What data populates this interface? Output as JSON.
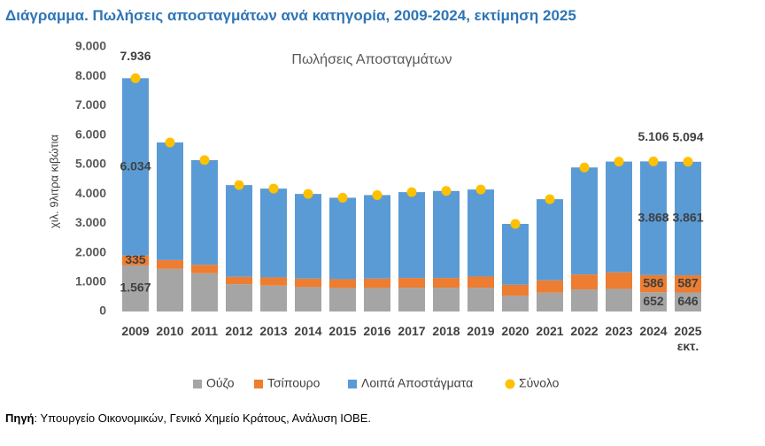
{
  "title": "Διάγραμμα. Πωλήσεις αποσταγμάτων ανά κατηγορία, 2009-2024, εκτίμηση 2025",
  "source": {
    "label": "Πηγή",
    "text": ": Υπουργείο Οικονομικών, Γενικό Χημείο Κράτους, Ανάλυση ΙΟΒΕ."
  },
  "chart_data": {
    "type": "bar",
    "stacked": true,
    "title": "Πωλήσεις Αποσταγμάτων",
    "y_label": "χιλ. 9λιτρα κιβώτια",
    "categories": [
      "2009",
      "2010",
      "2011",
      "2012",
      "2013",
      "2014",
      "2015",
      "2016",
      "2017",
      "2018",
      "2019",
      "2020",
      "2021",
      "2022",
      "2023",
      "2024",
      "2025 εκτ."
    ],
    "series": [
      {
        "name": "Ούζο",
        "color": "#a5a5a5",
        "values": [
          1567,
          1450,
          1300,
          930,
          880,
          830,
          800,
          800,
          810,
          810,
          810,
          540,
          640,
          750,
          770,
          652,
          646
        ],
        "value_labels": [
          "1.567",
          null,
          null,
          null,
          null,
          null,
          null,
          null,
          null,
          null,
          null,
          null,
          null,
          null,
          null,
          "652",
          "646"
        ]
      },
      {
        "name": "Τσίπουρο",
        "color": "#ed7d31",
        "values": [
          335,
          300,
          290,
          250,
          280,
          290,
          300,
          320,
          330,
          330,
          380,
          370,
          420,
          510,
          560,
          586,
          587
        ],
        "value_labels": [
          "335",
          null,
          null,
          null,
          null,
          null,
          null,
          null,
          null,
          null,
          null,
          null,
          null,
          null,
          null,
          "586",
          "587"
        ]
      },
      {
        "name": "Λοιπά Αποστάγματα",
        "color": "#5b9bd5",
        "values": [
          6034,
          4000,
          3560,
          3120,
          3020,
          2880,
          2770,
          2840,
          2920,
          2960,
          2960,
          2070,
          2760,
          3640,
          3770,
          3868,
          3861
        ],
        "value_labels": [
          "6.034",
          null,
          null,
          null,
          null,
          null,
          null,
          null,
          null,
          null,
          null,
          null,
          null,
          null,
          null,
          "3.868",
          "3.861"
        ]
      },
      {
        "name": "Σύνολο",
        "type": "scatter",
        "color": "#ffc000",
        "values": [
          7936,
          5750,
          5150,
          4300,
          4180,
          4000,
          3870,
          3960,
          4060,
          4100,
          4150,
          2980,
          3820,
          4900,
          5100,
          5106,
          5094
        ],
        "value_labels": [
          "7.936",
          null,
          null,
          null,
          null,
          null,
          null,
          null,
          null,
          null,
          null,
          null,
          null,
          null,
          null,
          "5.106",
          "5.094"
        ]
      }
    ],
    "ylim": [
      0,
      9000
    ],
    "yticks": [
      0,
      {
        "value": 1000,
        "label": "1.000"
      },
      {
        "value": 2000,
        "label": "2.000"
      },
      {
        "value": 3000,
        "label": "3.000"
      },
      {
        "value": 4000,
        "label": "4.000"
      },
      {
        "value": 5000,
        "label": "5.000"
      },
      {
        "value": 6000,
        "label": "6.000"
      },
      {
        "value": 7000,
        "label": "7.000"
      },
      {
        "value": 8000,
        "label": "8.000"
      },
      {
        "value": 9000,
        "label": "9.000"
      }
    ],
    "grid": false,
    "legend": "bottom"
  }
}
